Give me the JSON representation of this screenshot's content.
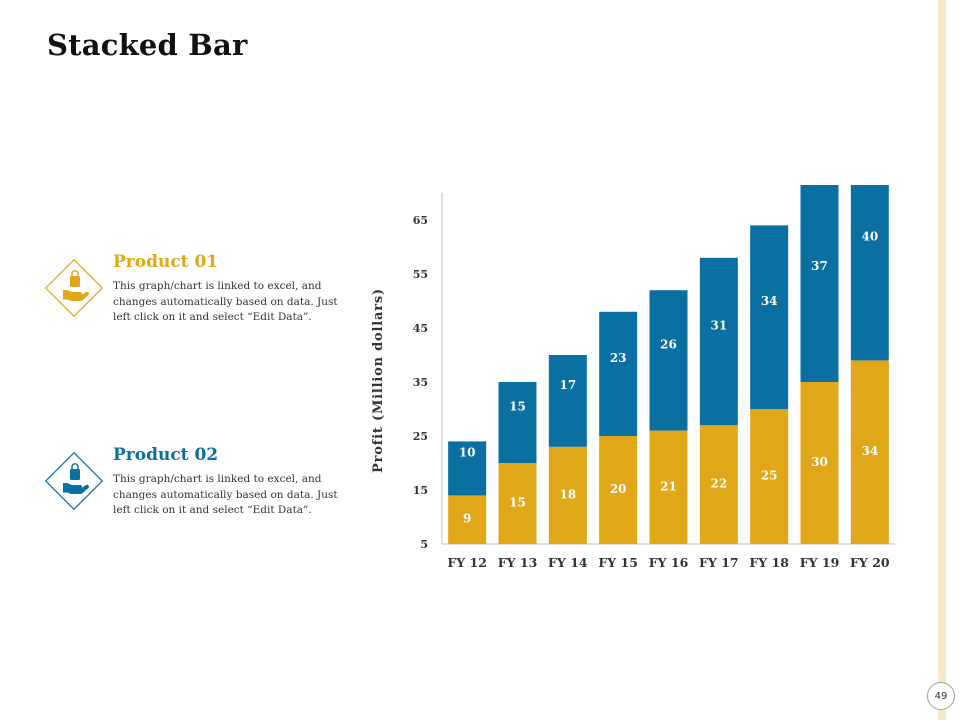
{
  "title": "Stacked Bar",
  "products": [
    {
      "name": "Product 01",
      "description": "This graph/chart is linked to excel, and changes automatically based on data. Just left click on it and select “Edit Data”.",
      "color": "#e0a818",
      "icon": "hand-holding-bag-icon"
    },
    {
      "name": "Product 02",
      "description": "This graph/chart is linked to excel, and changes automatically based on data. Just left click on it and select “Edit Data”.",
      "color": "#0a6fa1",
      "icon": "hand-holding-bag-icon"
    }
  ],
  "chart_data": {
    "type": "bar",
    "stacked": true,
    "categories": [
      "FY 12",
      "FY 13",
      "FY 14",
      "FY 15",
      "FY 16",
      "FY 17",
      "FY 18",
      "FY 19",
      "FY 20"
    ],
    "series": [
      {
        "values": [
          9,
          15,
          18,
          20,
          21,
          22,
          25,
          30,
          34
        ],
        "color": "#e0a818"
      },
      {
        "values": [
          10,
          15,
          17,
          23,
          26,
          31,
          34,
          37,
          40
        ],
        "color": "#0a6fa1"
      }
    ],
    "ylabel": "Profit (Million dollars)",
    "yticks": [
      5,
      15,
      25,
      35,
      45,
      55,
      65
    ],
    "ylim": [
      5,
      70
    ],
    "grid": false,
    "legend": "none"
  },
  "page_number": "49"
}
